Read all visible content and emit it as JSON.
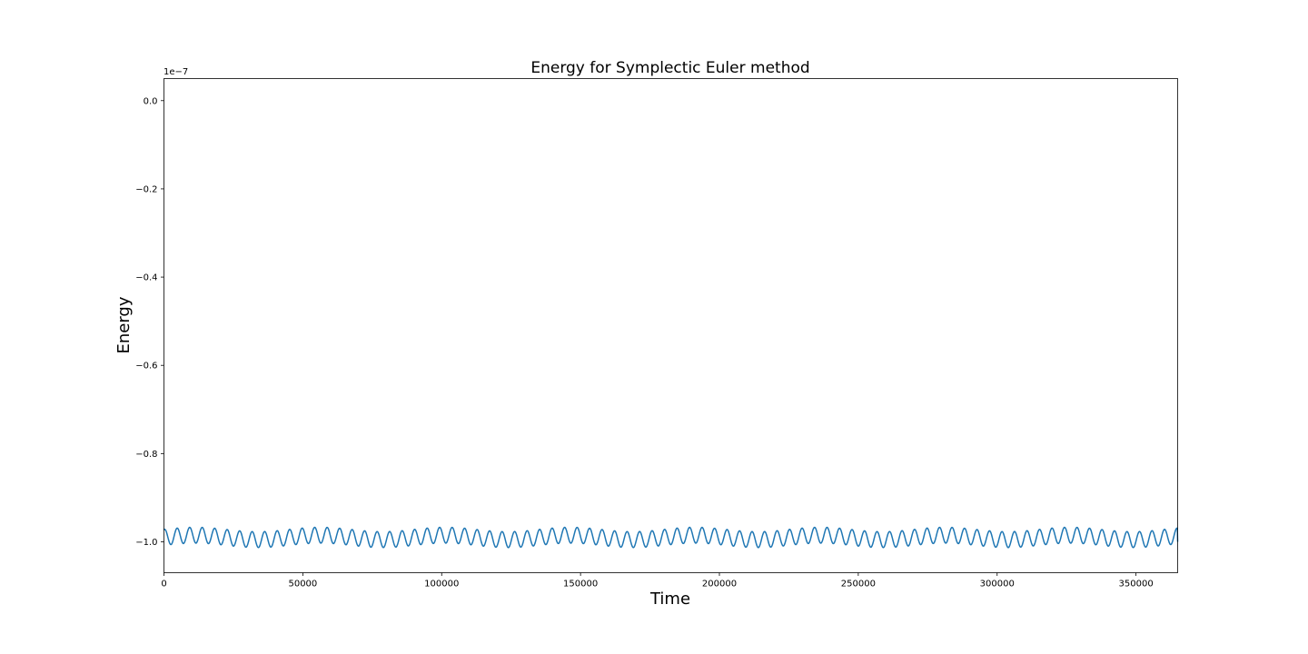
{
  "chart_data": {
    "type": "line",
    "title": "Energy for Symplectic Euler method",
    "xlabel": "Time",
    "ylabel": "Energy",
    "y_offset_text": "1e−7",
    "xlim": [
      0,
      365000
    ],
    "ylim": [
      -1.07,
      0.05
    ],
    "y_scale_multiplier": 1e-07,
    "xticks": [
      0,
      50000,
      100000,
      150000,
      200000,
      250000,
      300000,
      350000
    ],
    "xtick_labels": [
      "0",
      "50000",
      "100000",
      "150000",
      "200000",
      "250000",
      "300000",
      "350000"
    ],
    "yticks": [
      0.0,
      -0.2,
      -0.4,
      -0.6,
      -0.8,
      -1.0
    ],
    "ytick_labels": [
      "0.0",
      "−0.2",
      "−0.4",
      "−0.6",
      "−0.8",
      "−1.0"
    ],
    "grid": false,
    "series": [
      {
        "color": "#1f77b4",
        "description": "oscillating energy error around -0.99e-7",
        "mean": -0.99,
        "primary_period": 4500,
        "primary_amplitude": 0.018,
        "modulation_period": 45000,
        "modulation_amplitude": 0.005,
        "x_start": 0,
        "x_end": 365000,
        "y_start": -0.97,
        "y_end": -1.0
      }
    ]
  }
}
